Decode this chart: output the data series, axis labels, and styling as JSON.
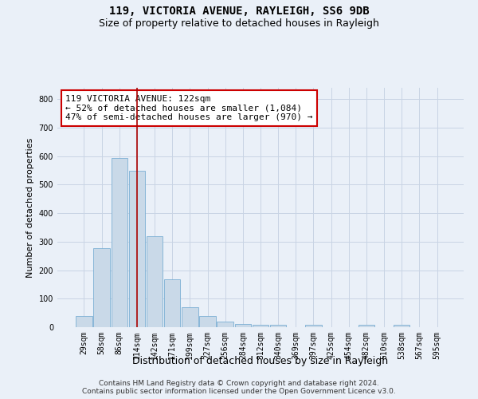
{
  "title1": "119, VICTORIA AVENUE, RAYLEIGH, SS6 9DB",
  "title2": "Size of property relative to detached houses in Rayleigh",
  "xlabel": "Distribution of detached houses by size in Rayleigh",
  "ylabel": "Number of detached properties",
  "categories": [
    "29sqm",
    "58sqm",
    "86sqm",
    "114sqm",
    "142sqm",
    "171sqm",
    "199sqm",
    "227sqm",
    "256sqm",
    "284sqm",
    "312sqm",
    "340sqm",
    "369sqm",
    "397sqm",
    "425sqm",
    "454sqm",
    "482sqm",
    "510sqm",
    "538sqm",
    "567sqm",
    "595sqm"
  ],
  "values": [
    38,
    278,
    593,
    548,
    320,
    168,
    70,
    38,
    20,
    11,
    8,
    8,
    0,
    8,
    0,
    0,
    8,
    0,
    8,
    0,
    0
  ],
  "bar_color": "#c9d9e8",
  "bar_edge_color": "#7bafd4",
  "grid_color": "#c8d4e4",
  "background_color": "#eaf0f8",
  "vline_x": 3.0,
  "vline_color": "#aa0000",
  "annotation_line1": "119 VICTORIA AVENUE: 122sqm",
  "annotation_line2": "← 52% of detached houses are smaller (1,084)",
  "annotation_line3": "47% of semi-detached houses are larger (970) →",
  "annotation_box_color": "#ffffff",
  "annotation_box_edge": "#cc0000",
  "ylim": [
    0,
    840
  ],
  "yticks": [
    0,
    100,
    200,
    300,
    400,
    500,
    600,
    700,
    800
  ],
  "footer": "Contains HM Land Registry data © Crown copyright and database right 2024.\nContains public sector information licensed under the Open Government Licence v3.0.",
  "title1_fontsize": 10,
  "title2_fontsize": 9,
  "xlabel_fontsize": 9,
  "ylabel_fontsize": 8,
  "tick_fontsize": 7,
  "annotation_fontsize": 8,
  "footer_fontsize": 6.5
}
